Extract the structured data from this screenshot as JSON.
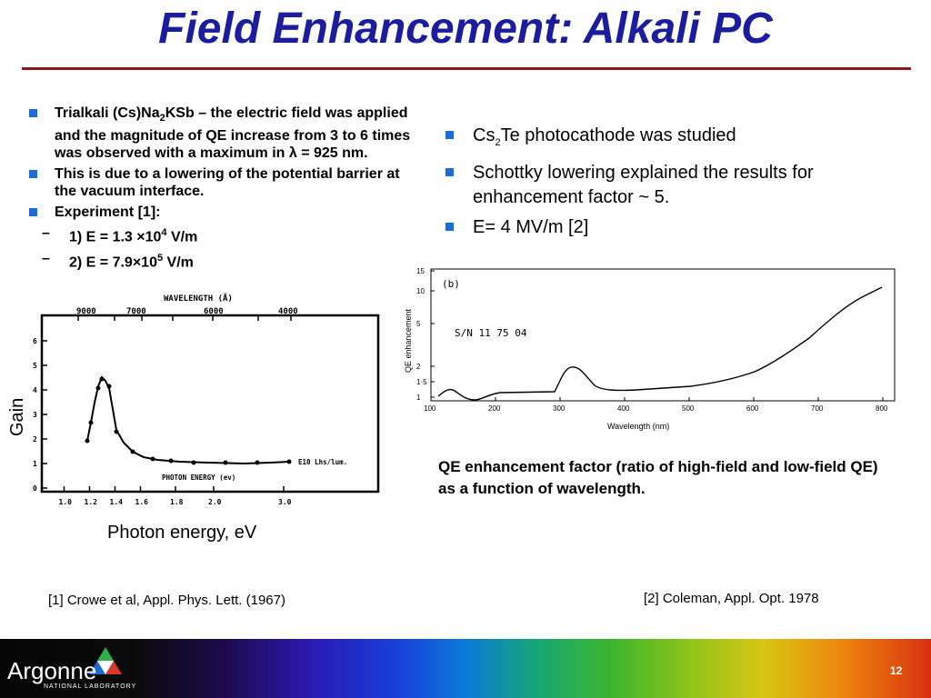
{
  "title": "Field Enhancement: Alkali PC",
  "left_bullets": {
    "b1_pre": "Trialkali (Cs)Na",
    "b1_sub": "2",
    "b1_post": "KSb – the electric field was applied and the magnitude of QE increase from 3 to 6 times was observed with a maximum in λ = 925 nm.",
    "b2": "This is due to a lowering of the potential barrier at the vacuum interface.",
    "b3": "Experiment [1]:",
    "s1_pre": "1) E = 1.3 ×10",
    "s1_sup": "4",
    "s1_post": " V/m",
    "s2_pre": "2) E = 7.9×10",
    "s2_sup": "5",
    "s2_post": " V/m"
  },
  "right_bullets": {
    "r1_pre": "Cs",
    "r1_sub": "2",
    "r1_post": "Te photocathode was studied",
    "r2": "Schottky lowering explained the results for enhancement factor ~ 5.",
    "r3": "E= 4 MV/m [2]"
  },
  "fig1": {
    "top_axis_label": "WAVELENGTH  (Å)",
    "top_ticks": [
      "9000",
      "7000",
      "6000",
      "4000"
    ],
    "y_ticks": [
      "0",
      "1",
      "2",
      "3",
      "4",
      "5",
      "6"
    ],
    "x_ticks": [
      "1.0",
      "1.2",
      "1.4",
      "1.6",
      "1.8",
      "2.0",
      "3.0"
    ],
    "series_label": "E10 Lhs/lum.",
    "inner_xlabel": "PHOTON ENERGY (ev)",
    "ylabel": "Gain",
    "xlabel": "Photon energy, eV"
  },
  "fig2": {
    "panel_label": "(b)",
    "sn_label": "S/N  11 75 04",
    "ylabel": "QE  enhancement",
    "xlabel": "Wavelength  (nm)",
    "y_ticks": [
      "1",
      "1·5",
      "2",
      "5",
      "10",
      "15"
    ],
    "x_ticks": [
      "100",
      "200",
      "300",
      "400",
      "500",
      "600",
      "700",
      "800"
    ]
  },
  "caption": "QE enhancement factor (ratio of high-field and low-field QE) as a function of wavelength.",
  "ref1": "[1] Crowe et al, Appl. Phys. Lett. (1967)",
  "ref2": "[2] Coleman, Appl. Opt. 1978",
  "footer": {
    "logo": "Argonne",
    "logo_sub": "NATIONAL LABORATORY",
    "page": "12"
  },
  "colors": {
    "title": "#1c1c9e",
    "rule": "#8b1a1a",
    "bullet": "#1e6bd6"
  }
}
